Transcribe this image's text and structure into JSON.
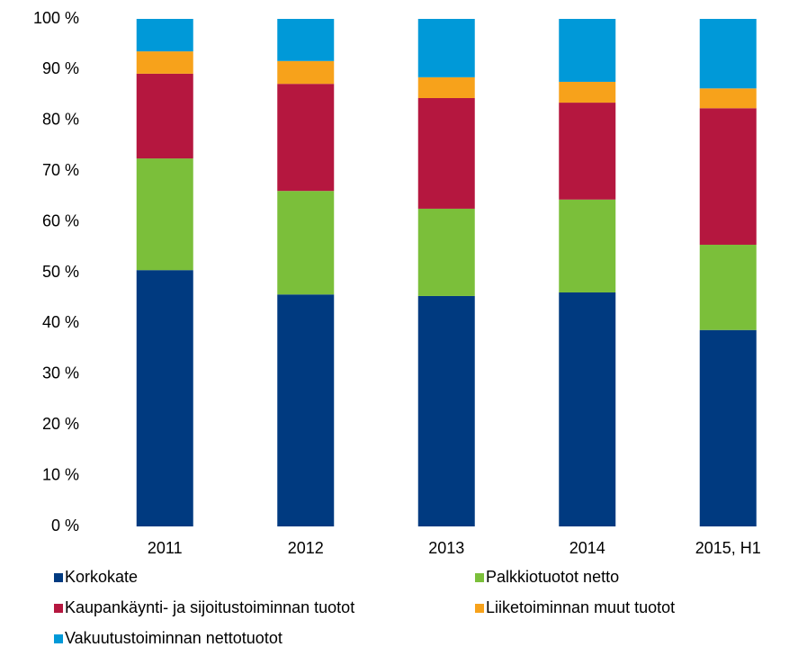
{
  "chart_data": {
    "type": "stacked_bar",
    "categories": [
      "2011",
      "2012",
      "2013",
      "2014",
      "2015, H1"
    ],
    "series": [
      {
        "name": "Korkokate",
        "color": "#003a80",
        "values": [
          50.5,
          45.7,
          45.4,
          46.1,
          38.7
        ]
      },
      {
        "name": "Palkkiotuotot netto",
        "color": "#7bbf3a",
        "values": [
          22.0,
          20.4,
          17.2,
          18.3,
          16.8
        ]
      },
      {
        "name": "Kaupankäynti- ja sijoitustoiminnan tuotot",
        "color": "#b5173f",
        "values": [
          16.7,
          21.1,
          21.8,
          19.1,
          26.9
        ]
      },
      {
        "name": "Liiketoiminnan muut tuotot",
        "color": "#f7a21b",
        "values": [
          4.4,
          4.5,
          4.1,
          4.1,
          3.9
        ]
      },
      {
        "name": "Vakuutustoiminnan nettotuotot",
        "color": "#0099d8",
        "values": [
          6.4,
          8.3,
          11.5,
          12.4,
          13.7
        ]
      }
    ],
    "ylim": [
      0,
      100
    ],
    "yticks": [
      {
        "value": 0,
        "label": "0 %"
      },
      {
        "value": 10,
        "label": "10 %"
      },
      {
        "value": 20,
        "label": "20 %"
      },
      {
        "value": 30,
        "label": "30 %"
      },
      {
        "value": 40,
        "label": "40 %"
      },
      {
        "value": 50,
        "label": "50 %"
      },
      {
        "value": 60,
        "label": "60 %"
      },
      {
        "value": 70,
        "label": "70 %"
      },
      {
        "value": 80,
        "label": "80 %"
      },
      {
        "value": 90,
        "label": "90 %"
      },
      {
        "value": 100,
        "label": "100 %"
      }
    ],
    "grid": false
  }
}
